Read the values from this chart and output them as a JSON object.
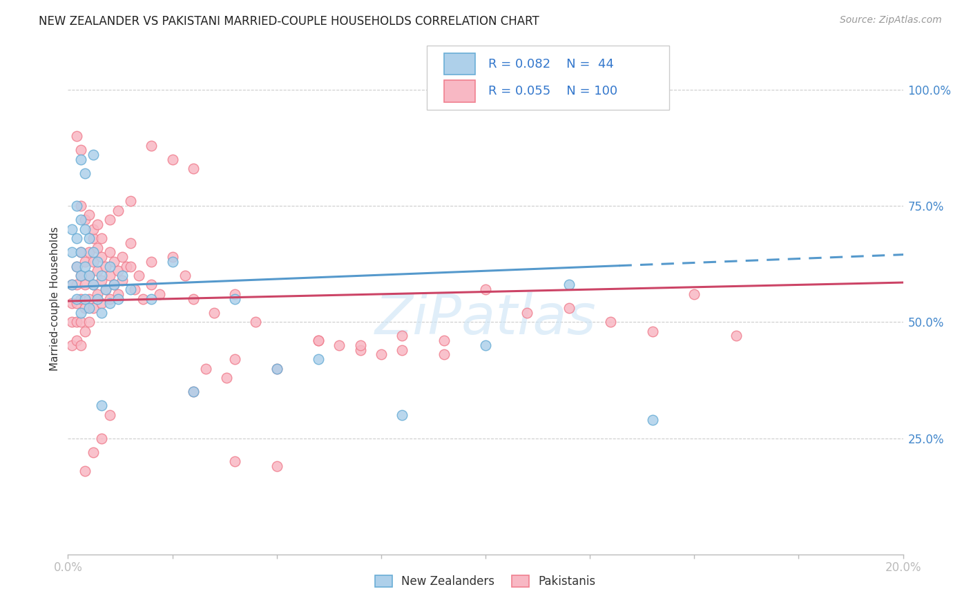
{
  "title": "NEW ZEALANDER VS PAKISTANI MARRIED-COUPLE HOUSEHOLDS CORRELATION CHART",
  "source": "Source: ZipAtlas.com",
  "ylabel": "Married-couple Households",
  "yaxis_labels": [
    "25.0%",
    "50.0%",
    "75.0%",
    "100.0%"
  ],
  "yaxis_values": [
    0.25,
    0.5,
    0.75,
    1.0
  ],
  "xmin": 0.0,
  "xmax": 0.2,
  "ymin": 0.0,
  "ymax": 1.1,
  "nz_color_edge": "#6aaed6",
  "nz_color_fill": "#aed0ea",
  "pk_color_edge": "#f08090",
  "pk_color_fill": "#f8b8c4",
  "line_nz_color": "#5599cc",
  "line_pk_color": "#cc4466",
  "nz_R": 0.082,
  "nz_N": 44,
  "pk_R": 0.055,
  "pk_N": 100,
  "legend_text_color": "#3377cc",
  "nz_line_intercept": 0.575,
  "nz_line_slope": 0.35,
  "pk_line_intercept": 0.545,
  "pk_line_slope": 0.2,
  "nz_scatter_x": [
    0.001,
    0.001,
    0.001,
    0.002,
    0.002,
    0.002,
    0.002,
    0.003,
    0.003,
    0.003,
    0.003,
    0.004,
    0.004,
    0.004,
    0.005,
    0.005,
    0.005,
    0.006,
    0.006,
    0.007,
    0.007,
    0.008,
    0.008,
    0.009,
    0.01,
    0.01,
    0.011,
    0.012,
    0.013,
    0.015,
    0.02,
    0.025,
    0.03,
    0.04,
    0.05,
    0.06,
    0.08,
    0.1,
    0.12,
    0.14,
    0.003,
    0.004,
    0.006,
    0.008
  ],
  "nz_scatter_y": [
    0.7,
    0.65,
    0.58,
    0.75,
    0.68,
    0.62,
    0.55,
    0.72,
    0.65,
    0.6,
    0.52,
    0.7,
    0.62,
    0.55,
    0.68,
    0.6,
    0.53,
    0.65,
    0.58,
    0.63,
    0.55,
    0.6,
    0.52,
    0.57,
    0.62,
    0.54,
    0.58,
    0.55,
    0.6,
    0.57,
    0.55,
    0.63,
    0.35,
    0.55,
    0.4,
    0.42,
    0.3,
    0.45,
    0.58,
    0.29,
    0.85,
    0.82,
    0.86,
    0.32
  ],
  "pk_scatter_x": [
    0.001,
    0.001,
    0.001,
    0.001,
    0.002,
    0.002,
    0.002,
    0.002,
    0.002,
    0.003,
    0.003,
    0.003,
    0.003,
    0.003,
    0.004,
    0.004,
    0.004,
    0.004,
    0.005,
    0.005,
    0.005,
    0.005,
    0.006,
    0.006,
    0.006,
    0.006,
    0.007,
    0.007,
    0.007,
    0.008,
    0.008,
    0.008,
    0.009,
    0.009,
    0.01,
    0.01,
    0.01,
    0.011,
    0.011,
    0.012,
    0.012,
    0.013,
    0.013,
    0.014,
    0.015,
    0.015,
    0.016,
    0.017,
    0.018,
    0.02,
    0.02,
    0.022,
    0.025,
    0.028,
    0.03,
    0.03,
    0.033,
    0.035,
    0.038,
    0.04,
    0.04,
    0.045,
    0.05,
    0.06,
    0.065,
    0.07,
    0.075,
    0.08,
    0.09,
    0.1,
    0.11,
    0.12,
    0.13,
    0.14,
    0.15,
    0.16,
    0.003,
    0.004,
    0.005,
    0.006,
    0.007,
    0.008,
    0.01,
    0.012,
    0.015,
    0.02,
    0.025,
    0.03,
    0.04,
    0.05,
    0.06,
    0.07,
    0.08,
    0.09,
    0.004,
    0.006,
    0.008,
    0.01,
    0.002,
    0.003
  ],
  "pk_scatter_y": [
    0.58,
    0.54,
    0.5,
    0.45,
    0.62,
    0.58,
    0.54,
    0.5,
    0.46,
    0.65,
    0.6,
    0.55,
    0.5,
    0.45,
    0.63,
    0.58,
    0.53,
    0.48,
    0.65,
    0.6,
    0.55,
    0.5,
    0.68,
    0.63,
    0.58,
    0.53,
    0.66,
    0.61,
    0.56,
    0.64,
    0.59,
    0.54,
    0.62,
    0.57,
    0.65,
    0.6,
    0.55,
    0.63,
    0.58,
    0.61,
    0.56,
    0.64,
    0.59,
    0.62,
    0.67,
    0.62,
    0.57,
    0.6,
    0.55,
    0.63,
    0.58,
    0.56,
    0.64,
    0.6,
    0.35,
    0.55,
    0.4,
    0.52,
    0.38,
    0.56,
    0.42,
    0.5,
    0.4,
    0.46,
    0.45,
    0.44,
    0.43,
    0.47,
    0.46,
    0.57,
    0.52,
    0.53,
    0.5,
    0.48,
    0.56,
    0.47,
    0.75,
    0.72,
    0.73,
    0.7,
    0.71,
    0.68,
    0.72,
    0.74,
    0.76,
    0.88,
    0.85,
    0.83,
    0.2,
    0.19,
    0.46,
    0.45,
    0.44,
    0.43,
    0.18,
    0.22,
    0.25,
    0.3,
    0.9,
    0.87
  ]
}
